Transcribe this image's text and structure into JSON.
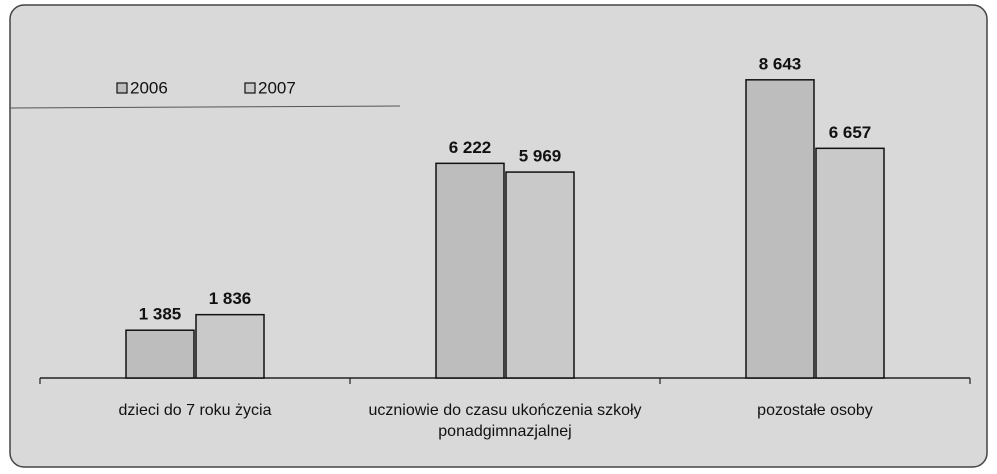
{
  "chart_data": {
    "type": "bar",
    "categories": [
      "dzieci do 7 roku życia",
      "uczniowie do czasu ukończenia szkoły ponadgimnazjalnej",
      "pozostałe osoby"
    ],
    "series": [
      {
        "name": "2006",
        "color": "#bdbdbd",
        "values": [
          1385,
          6222,
          8643
        ],
        "value_labels": [
          "1 385",
          "6 222",
          "8 643"
        ]
      },
      {
        "name": "2007",
        "color": "#c9c9c9",
        "values": [
          1836,
          5969,
          6657
        ],
        "value_labels": [
          "1 836",
          "5 969",
          "6 657"
        ]
      }
    ],
    "legend": "top-left"
  }
}
